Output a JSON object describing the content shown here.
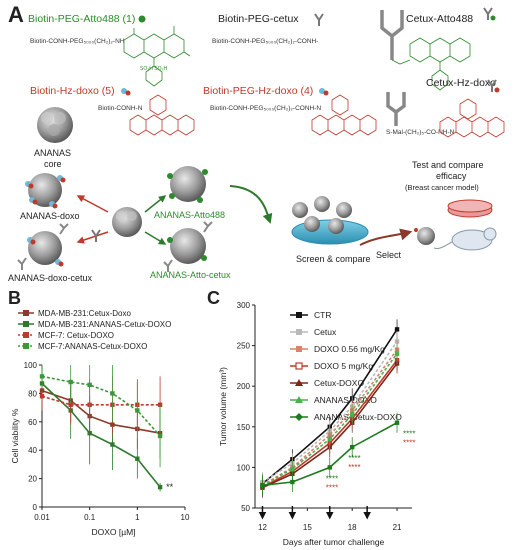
{
  "panels": {
    "a": "A",
    "b": "B",
    "c": "C"
  },
  "panel_a": {
    "compounds": {
      "biotin_atto": {
        "label": "Biotin-PEG-Atto488 (1)",
        "formula": "Biotin-CONH-PEG₅₀₀₀(CH₂)₂-NH"
      },
      "biotin_cetux": {
        "label": "Biotin-PEG-cetux",
        "formula": "Biotin-CONH-PEG₅₀₀₀(CH₂)₂-CONH-"
      },
      "cetux_atto": {
        "label": "Cetux-Atto488"
      },
      "biotin_hz": {
        "label": "Biotin-Hz-doxo (5)",
        "formula": "Biotin-CONH-N"
      },
      "biotin_peg_hz": {
        "label": "Biotin-PEG-Hz-doxo (4)",
        "formula": "Biotin-CONH-PEG₅₀₀₀(CH₂)₂-CONH-N"
      },
      "cetux_hz": {
        "label": "Cetux-Hz-doxo",
        "formula": "S-Mal-(CH₂)₅-CO-NH-N"
      }
    },
    "core_label_1": "ANANAS",
    "core_label_2": "core",
    "nano": {
      "doxo": "ANANAS-doxo",
      "doxo_cetux": "ANANAS-doxo-cetux",
      "atto": "ANANAS-Atto488",
      "atto_cetux": "ANANAS-Atto-cetux"
    },
    "test_title_1": "Test and compare",
    "test_title_2": "efficacy",
    "test_subtitle": "(Breast cancer model)",
    "screen_label": "Screen & compare",
    "select_label": "Select"
  },
  "panel_b": {
    "legend": [
      {
        "label": "MDA-MB-231:Cetux-Doxo",
        "color": "#8b3a2a"
      },
      {
        "label": "MDA-MB-231:ANANAS-Cetux-DOXO",
        "color": "#2d7a2d"
      },
      {
        "label": "MCF-7: Cetux-DOXO",
        "color": "#b83c2e"
      },
      {
        "label": "MCF-7:ANANAS-Cetux-DOXO",
        "color": "#3a9a3a"
      }
    ],
    "chart_data": {
      "type": "line",
      "xlabel": "DOXO [µM]",
      "ylabel": "Cell viability %",
      "xscale": "log",
      "xlim": [
        0.01,
        10
      ],
      "ylim": [
        0,
        100
      ],
      "x_ticks": [
        "0.01",
        "0.1",
        "1",
        "10"
      ],
      "y_ticks": [
        "0",
        "20",
        "40",
        "60",
        "80",
        "100"
      ],
      "annotation": "**",
      "series": [
        {
          "name": "MDA-MB-231:Cetux-Doxo",
          "color": "#8b3a2a",
          "dashed": false,
          "x": [
            0.01,
            0.04,
            0.1,
            0.3,
            1,
            3
          ],
          "y": [
            82,
            75,
            64,
            58,
            55,
            52
          ],
          "err": [
            10,
            15,
            14,
            14,
            14,
            18
          ]
        },
        {
          "name": "MDA-MB-231:ANANAS-Cetux-DOXO",
          "color": "#2d7a2d",
          "dashed": false,
          "x": [
            0.01,
            0.04,
            0.1,
            0.3,
            1,
            3
          ],
          "y": [
            87,
            68,
            52,
            44,
            34,
            14
          ],
          "err": [
            10,
            20,
            22,
            18,
            14,
            3
          ]
        },
        {
          "name": "MCF-7: Cetux-DOXO",
          "color": "#b83c2e",
          "dashed": true,
          "x": [
            0.01,
            0.04,
            0.1,
            0.3,
            1,
            3
          ],
          "y": [
            78,
            72,
            72,
            72,
            72,
            72
          ],
          "err": [
            10,
            14,
            18,
            20,
            18,
            20
          ]
        },
        {
          "name": "MCF-7:ANANAS-Cetux-DOXO",
          "color": "#3a9a3a",
          "dashed": true,
          "x": [
            0.01,
            0.04,
            0.1,
            0.3,
            1,
            3
          ],
          "y": [
            92,
            88,
            86,
            80,
            68,
            50
          ],
          "err": [
            8,
            15,
            18,
            20,
            20,
            22
          ]
        }
      ]
    }
  },
  "panel_c": {
    "legend": [
      {
        "label": "CTR",
        "color": "#111111",
        "marker": "square"
      },
      {
        "label": "Cetux",
        "color": "#b8b8b8",
        "marker": "square"
      },
      {
        "label": "DOXO 0.56 mg/Kg",
        "color": "#d9826a",
        "marker": "square"
      },
      {
        "label": "DOXO 5 mg/Kg",
        "color": "#c0392b",
        "marker": "square-open"
      },
      {
        "label": "Cetux-DOXO",
        "color": "#7a2a1a",
        "marker": "triangle"
      },
      {
        "label": "ANANAS-DOXO",
        "color": "#4caf50",
        "marker": "triangle"
      },
      {
        "label": "ANANAS-Cetux-DOXO",
        "color": "#1e7a1e",
        "marker": "diamond"
      }
    ],
    "chart_data": {
      "type": "line",
      "xlabel": "Days after tumor challenge",
      "ylabel": "Tumor volume (mm³)",
      "xlim": [
        11.5,
        22
      ],
      "ylim": [
        50,
        300
      ],
      "x_ticks": [
        12,
        15,
        18,
        21
      ],
      "y_ticks": [
        50,
        100,
        150,
        200,
        250,
        300
      ],
      "treatment_days": [
        12,
        14,
        16.5,
        19
      ],
      "annotations": [
        "****",
        "****",
        "****",
        "****"
      ],
      "series": [
        {
          "name": "CTR",
          "color": "#111111",
          "x": [
            12,
            14,
            16.5,
            18,
            21
          ],
          "y": [
            80,
            110,
            150,
            185,
            270
          ]
        },
        {
          "name": "Cetux",
          "color": "#b8b8b8",
          "x": [
            12,
            14,
            16.5,
            18,
            21
          ],
          "y": [
            82,
            105,
            145,
            175,
            255
          ]
        },
        {
          "name": "DOXO 0.56 mg/Kg",
          "color": "#d9826a",
          "x": [
            12,
            14,
            16.5,
            18,
            21
          ],
          "y": [
            78,
            100,
            140,
            170,
            245
          ]
        },
        {
          "name": "DOXO 5 mg/Kg",
          "color": "#c0392b",
          "x": [
            12,
            14,
            16.5,
            18,
            21
          ],
          "y": [
            76,
            95,
            130,
            160,
            232
          ]
        },
        {
          "name": "Cetux-DOXO",
          "color": "#7a2a1a",
          "x": [
            12,
            14,
            16.5,
            18,
            21
          ],
          "y": [
            75,
            92,
            125,
            155,
            228
          ]
        },
        {
          "name": "ANANAS-DOXO",
          "color": "#4caf50",
          "x": [
            12,
            14,
            16.5,
            18,
            21
          ],
          "y": [
            78,
            98,
            135,
            165,
            240
          ]
        },
        {
          "name": "ANANAS-Cetux-DOXO",
          "color": "#1e7a1e",
          "x": [
            12,
            14,
            16.5,
            18,
            21
          ],
          "y": [
            78,
            82,
            100,
            125,
            155
          ]
        }
      ]
    }
  }
}
